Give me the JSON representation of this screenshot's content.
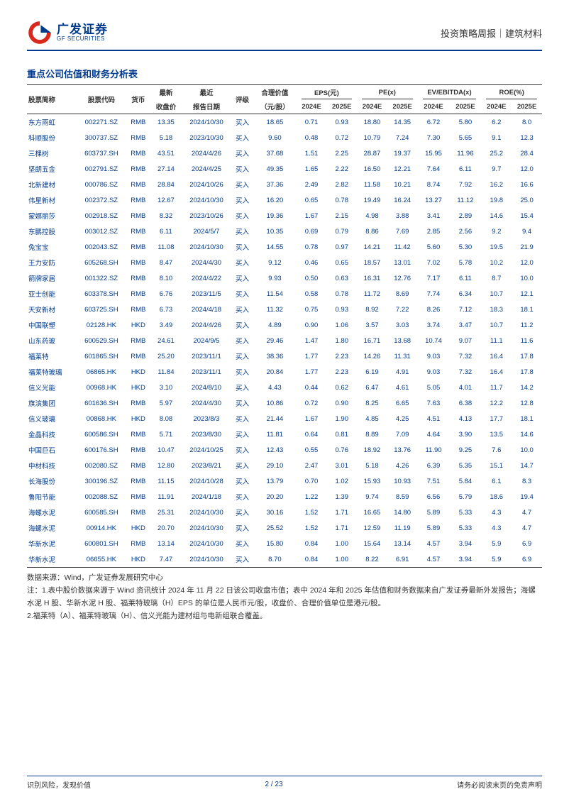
{
  "header": {
    "logo_cn": "广发证券",
    "logo_en": "GF SECURITIES",
    "right": "投资策略周报｜建筑材料"
  },
  "section_title": "重点公司估值和财务分析表",
  "table": {
    "group_headers": {
      "name": "股票简称",
      "code": "股票代码",
      "currency": "货币",
      "price_group": "最新",
      "price_sub": "收盘价",
      "date_group": "最近",
      "date_sub": "报告日期",
      "rating": "评级",
      "fair_group": "合理价值",
      "fair_sub": "（元/股）",
      "eps": "EPS(元)",
      "pe": "PE(x)",
      "evebitda": "EV/EBITDA(x)",
      "roe": "ROE(%)",
      "y2024": "2024E",
      "y2025": "2025E"
    },
    "rows": [
      [
        "东方雨虹",
        "002271.SZ",
        "RMB",
        "13.35",
        "2024/10/30",
        "买入",
        "18.65",
        "0.71",
        "0.93",
        "18.80",
        "14.35",
        "6.72",
        "5.80",
        "6.2",
        "8.0"
      ],
      [
        "科顺股份",
        "300737.SZ",
        "RMB",
        "5.18",
        "2023/10/30",
        "买入",
        "9.60",
        "0.48",
        "0.72",
        "10.79",
        "7.24",
        "7.30",
        "5.65",
        "9.1",
        "12.3"
      ],
      [
        "三棵树",
        "603737.SH",
        "RMB",
        "43.51",
        "2024/4/26",
        "买入",
        "37.68",
        "1.51",
        "2.25",
        "28.87",
        "19.37",
        "15.95",
        "11.96",
        "25.2",
        "28.4"
      ],
      [
        "坚朗五金",
        "002791.SZ",
        "RMB",
        "27.14",
        "2024/4/25",
        "买入",
        "49.35",
        "1.65",
        "2.22",
        "16.50",
        "12.21",
        "7.64",
        "6.11",
        "9.7",
        "12.0"
      ],
      [
        "北新建材",
        "000786.SZ",
        "RMB",
        "28.84",
        "2024/10/26",
        "买入",
        "37.36",
        "2.49",
        "2.82",
        "11.58",
        "10.21",
        "8.74",
        "7.92",
        "16.2",
        "16.6"
      ],
      [
        "伟星新材",
        "002372.SZ",
        "RMB",
        "12.67",
        "2024/10/30",
        "买入",
        "16.20",
        "0.65",
        "0.78",
        "19.49",
        "16.24",
        "13.27",
        "11.12",
        "19.8",
        "25.0"
      ],
      [
        "蒙娜丽莎",
        "002918.SZ",
        "RMB",
        "8.32",
        "2023/10/26",
        "买入",
        "19.36",
        "1.67",
        "2.15",
        "4.98",
        "3.88",
        "3.41",
        "2.89",
        "14.6",
        "15.4"
      ],
      [
        "东鹏控股",
        "003012.SZ",
        "RMB",
        "6.11",
        "2024/5/7",
        "买入",
        "10.35",
        "0.69",
        "0.79",
        "8.86",
        "7.69",
        "2.85",
        "2.56",
        "9.2",
        "9.4"
      ],
      [
        "兔宝宝",
        "002043.SZ",
        "RMB",
        "11.08",
        "2024/10/30",
        "买入",
        "14.55",
        "0.78",
        "0.97",
        "14.21",
        "11.42",
        "5.60",
        "5.30",
        "19.5",
        "21.9"
      ],
      [
        "王力安防",
        "605268.SH",
        "RMB",
        "8.47",
        "2024/4/30",
        "买入",
        "9.12",
        "0.46",
        "0.65",
        "18.57",
        "13.01",
        "7.02",
        "5.78",
        "10.2",
        "12.0"
      ],
      [
        "箭牌家居",
        "001322.SZ",
        "RMB",
        "8.10",
        "2024/4/22",
        "买入",
        "9.93",
        "0.50",
        "0.63",
        "16.31",
        "12.76",
        "7.17",
        "6.11",
        "8.7",
        "10.0"
      ],
      [
        "亚士创能",
        "603378.SH",
        "RMB",
        "6.76",
        "2023/11/5",
        "买入",
        "11.54",
        "0.58",
        "0.78",
        "11.72",
        "8.69",
        "7.74",
        "6.34",
        "10.7",
        "12.1"
      ],
      [
        "天安新材",
        "603725.SH",
        "RMB",
        "6.73",
        "2024/4/18",
        "买入",
        "11.32",
        "0.75",
        "0.93",
        "8.92",
        "7.22",
        "8.26",
        "7.12",
        "18.3",
        "18.1"
      ],
      [
        "中国联塑",
        "02128.HK",
        "HKD",
        "3.49",
        "2024/4/26",
        "买入",
        "4.89",
        "0.90",
        "1.06",
        "3.57",
        "3.03",
        "3.74",
        "3.47",
        "10.7",
        "11.2"
      ],
      [
        "山东药玻",
        "600529.SH",
        "RMB",
        "24.61",
        "2024/9/5",
        "买入",
        "29.46",
        "1.47",
        "1.80",
        "16.71",
        "13.68",
        "10.74",
        "9.07",
        "11.1",
        "11.6"
      ],
      [
        "福莱特",
        "601865.SH",
        "RMB",
        "25.20",
        "2023/11/1",
        "买入",
        "38.36",
        "1.77",
        "2.23",
        "14.26",
        "11.31",
        "9.03",
        "7.32",
        "16.4",
        "17.8"
      ],
      [
        "福莱特玻璃",
        "06865.HK",
        "HKD",
        "11.84",
        "2023/11/1",
        "买入",
        "20.84",
        "1.77",
        "2.23",
        "6.19",
        "4.91",
        "9.03",
        "7.32",
        "16.4",
        "17.8"
      ],
      [
        "信义光能",
        "00968.HK",
        "HKD",
        "3.10",
        "2024/8/10",
        "买入",
        "4.43",
        "0.44",
        "0.62",
        "6.47",
        "4.61",
        "5.05",
        "4.01",
        "11.7",
        "14.2"
      ],
      [
        "旗滨集团",
        "601636.SH",
        "RMB",
        "5.97",
        "2024/4/30",
        "买入",
        "10.86",
        "0.72",
        "0.90",
        "8.25",
        "6.65",
        "7.63",
        "6.38",
        "12.2",
        "12.8"
      ],
      [
        "信义玻璃",
        "00868.HK",
        "HKD",
        "8.08",
        "2023/8/3",
        "买入",
        "21.44",
        "1.67",
        "1.90",
        "4.85",
        "4.25",
        "4.51",
        "4.13",
        "17.7",
        "18.1"
      ],
      [
        "金晶科技",
        "600586.SH",
        "RMB",
        "5.71",
        "2023/8/30",
        "买入",
        "11.81",
        "0.64",
        "0.81",
        "8.89",
        "7.09",
        "4.64",
        "3.90",
        "13.5",
        "14.6"
      ],
      [
        "中国巨石",
        "600176.SH",
        "RMB",
        "10.47",
        "2024/10/25",
        "买入",
        "12.43",
        "0.55",
        "0.76",
        "18.92",
        "13.76",
        "11.90",
        "9.25",
        "7.6",
        "10.0"
      ],
      [
        "中材科技",
        "002080.SZ",
        "RMB",
        "12.80",
        "2023/8/21",
        "买入",
        "29.10",
        "2.47",
        "3.01",
        "5.18",
        "4.26",
        "6.39",
        "5.35",
        "15.1",
        "14.7"
      ],
      [
        "长海股份",
        "300196.SZ",
        "RMB",
        "11.15",
        "2024/10/28",
        "买入",
        "13.79",
        "0.70",
        "1.02",
        "15.93",
        "10.93",
        "7.51",
        "5.84",
        "6.1",
        "8.3"
      ],
      [
        "鲁阳节能",
        "002088.SZ",
        "RMB",
        "11.91",
        "2024/1/18",
        "买入",
        "20.20",
        "1.22",
        "1.39",
        "9.74",
        "8.59",
        "6.56",
        "5.79",
        "18.6",
        "19.4"
      ],
      [
        "海螺水泥",
        "600585.SH",
        "RMB",
        "25.31",
        "2024/10/30",
        "买入",
        "30.16",
        "1.52",
        "1.71",
        "16.65",
        "14.80",
        "5.89",
        "5.33",
        "4.3",
        "4.7"
      ],
      [
        "海螺水泥",
        "00914.HK",
        "HKD",
        "20.70",
        "2024/10/30",
        "买入",
        "25.52",
        "1.52",
        "1.71",
        "12.59",
        "11.19",
        "5.89",
        "5.33",
        "4.3",
        "4.7"
      ],
      [
        "华新水泥",
        "600801.SH",
        "RMB",
        "13.14",
        "2024/10/30",
        "买入",
        "15.80",
        "0.84",
        "1.00",
        "15.64",
        "13.14",
        "4.57",
        "3.94",
        "5.9",
        "6.9"
      ],
      [
        "华新水泥",
        "06655.HK",
        "HKD",
        "7.47",
        "2024/10/30",
        "买入",
        "8.70",
        "0.84",
        "1.00",
        "8.22",
        "6.91",
        "4.57",
        "3.94",
        "5.9",
        "6.9"
      ]
    ]
  },
  "notes": {
    "source": "数据来源：Wind，广发证券发展研究中心",
    "note1": "注：1.表中股价数据来源于 Wind 资讯统计 2024 年 11 月 22 日该公司收盘市值；表中 2024 年和 2025 年估值和财务数据来自广发证券最新外发报告；海螺水泥 H 股、华新水泥 H 股、福莱特玻璃（H）EPS 的单位是人民币元/股，收盘价、合理价值单位是港元/股。",
    "note2": "2.福莱特（A）、福莱特玻璃（H）、信义光能为建材组与电新组联合覆盖。"
  },
  "footer": {
    "left": "识别风险，发现价值",
    "center": "2 / 23",
    "right": "请务必阅读末页的免责声明"
  },
  "colors": {
    "brand": "#003a8c",
    "accent": "#d9291c",
    "text": "#333333",
    "bg": "#ffffff"
  }
}
